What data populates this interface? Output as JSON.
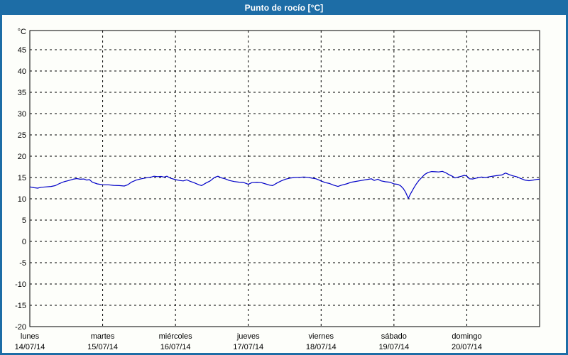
{
  "window": {
    "title": "Punto de rocío [°C]"
  },
  "colors": {
    "frame": "#1d6da6",
    "title_text": "#ffffff",
    "chart_bg": "#fdfefa",
    "plot_border": "#000000",
    "grid": "#000000",
    "label": "#000000",
    "line": "#0000c8"
  },
  "chart_data": {
    "type": "line",
    "title": "Punto de rocío [°C]",
    "unit_label": "°C",
    "ylabel": "°C",
    "ylim": [
      -20,
      49.5
    ],
    "ytick_step": 5,
    "yticks": [
      45,
      40,
      35,
      30,
      25,
      20,
      15,
      10,
      5,
      0,
      -5,
      -10,
      -15,
      -20
    ],
    "grid": "dashed",
    "legend": "none",
    "x_axis": {
      "xlim_days": [
        0,
        7
      ],
      "days": [
        {
          "name": "lunes",
          "date": "14/07/14"
        },
        {
          "name": "martes",
          "date": "15/07/14"
        },
        {
          "name": "miércoles",
          "date": "16/07/14"
        },
        {
          "name": "jueves",
          "date": "17/07/14"
        },
        {
          "name": "viernes",
          "date": "18/07/14"
        },
        {
          "name": "sábado",
          "date": "19/07/14"
        },
        {
          "name": "domingo",
          "date": "20/07/14"
        }
      ]
    },
    "series": [
      {
        "name": "Punto de rocío",
        "color": "#0000c8",
        "x": [
          0.0,
          0.058,
          0.107,
          0.156,
          0.224,
          0.292,
          0.351,
          0.409,
          0.468,
          0.536,
          0.595,
          0.643,
          0.692,
          0.741,
          0.78,
          0.819,
          0.858,
          0.926,
          1.0,
          1.072,
          1.15,
          1.228,
          1.297,
          1.345,
          1.394,
          1.462,
          1.531,
          1.609,
          1.667,
          1.706,
          1.755,
          1.804,
          1.843,
          1.882,
          1.93,
          2.0,
          2.057,
          2.106,
          2.155,
          2.203,
          2.252,
          2.32,
          2.359,
          2.418,
          2.476,
          2.535,
          2.583,
          2.632,
          2.681,
          2.739,
          2.808,
          2.876,
          2.934,
          3.0,
          3.051,
          3.12,
          3.178,
          3.237,
          3.295,
          3.334,
          3.393,
          3.451,
          3.51,
          3.568,
          3.636,
          3.705,
          3.763,
          3.812,
          3.861,
          3.929,
          4.0,
          4.056,
          4.114,
          4.173,
          4.231,
          4.28,
          4.348,
          4.416,
          4.485,
          4.553,
          4.621,
          4.69,
          4.729,
          4.777,
          4.826,
          4.884,
          4.943,
          5.0,
          5.05,
          5.089,
          5.128,
          5.158,
          5.197,
          5.226,
          5.265,
          5.304,
          5.343,
          5.382,
          5.421,
          5.47,
          5.518,
          5.567,
          5.616,
          5.665,
          5.713,
          5.752,
          5.801,
          5.84,
          5.879,
          5.928,
          5.967,
          6.0,
          6.035,
          6.083,
          6.142,
          6.2,
          6.259,
          6.317,
          6.376,
          6.434,
          6.483,
          6.532,
          6.581,
          6.63,
          6.688,
          6.737,
          6.795,
          6.854,
          6.912,
          6.961,
          7.0
        ],
        "y": [
          12.8,
          12.6,
          12.5,
          12.7,
          12.8,
          12.9,
          13.1,
          13.6,
          14.0,
          14.3,
          14.6,
          14.75,
          14.6,
          14.65,
          14.4,
          14.5,
          13.9,
          13.5,
          13.3,
          13.3,
          13.15,
          13.1,
          13.0,
          13.3,
          13.9,
          14.4,
          14.7,
          14.95,
          15.1,
          15.3,
          15.2,
          15.25,
          15.1,
          15.3,
          14.85,
          14.5,
          14.3,
          14.2,
          14.45,
          14.1,
          13.8,
          13.3,
          13.1,
          13.7,
          14.2,
          15.0,
          15.3,
          14.9,
          14.7,
          14.3,
          14.05,
          13.9,
          13.85,
          13.4,
          13.8,
          13.85,
          13.8,
          13.5,
          13.2,
          13.1,
          13.7,
          14.2,
          14.6,
          14.85,
          15.0,
          15.05,
          15.1,
          15.05,
          14.9,
          14.7,
          14.2,
          13.8,
          13.6,
          13.2,
          12.9,
          13.2,
          13.5,
          13.9,
          14.1,
          14.3,
          14.5,
          14.7,
          14.3,
          14.6,
          14.2,
          14.0,
          13.9,
          13.5,
          13.4,
          13.1,
          12.4,
          11.6,
          10.1,
          11.1,
          12.3,
          13.4,
          14.3,
          15.0,
          15.7,
          16.2,
          16.4,
          16.35,
          16.3,
          16.45,
          16.1,
          15.7,
          15.3,
          14.9,
          15.1,
          15.3,
          15.5,
          15.35,
          14.7,
          14.65,
          14.9,
          15.1,
          15.0,
          15.2,
          15.35,
          15.5,
          15.6,
          16.05,
          15.7,
          15.4,
          15.15,
          14.8,
          14.4,
          14.25,
          14.4,
          14.55,
          14.6
        ]
      }
    ]
  }
}
